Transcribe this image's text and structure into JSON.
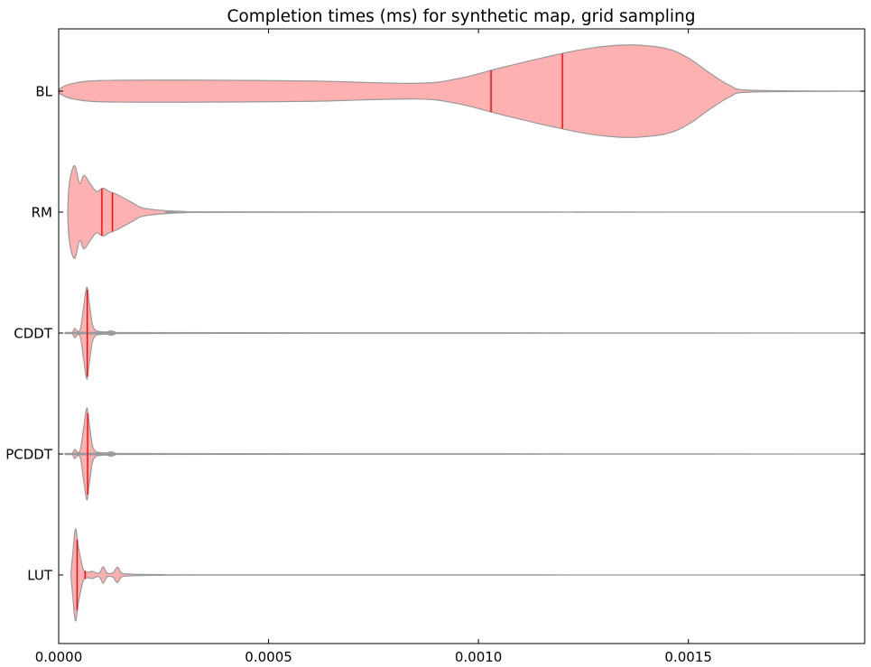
{
  "chart_data": {
    "type": "violin",
    "title": "Completion times (ms) for synthetic map, grid sampling",
    "xlabel": "",
    "ylabel": "",
    "xlim": [
      0,
      0.00192
    ],
    "x_ticks": [
      {
        "value": 0,
        "label": "0.0000"
      },
      {
        "value": 0.0005,
        "label": "0.0005"
      },
      {
        "value": 0.001,
        "label": "0.0010"
      },
      {
        "value": 0.0015,
        "label": "0.0015"
      }
    ],
    "grid": false,
    "legend": "none",
    "colors": {
      "fill": "#ffb0b0",
      "edge": "#999999",
      "marker": "#ff0000"
    },
    "series": [
      {
        "category": "BL",
        "markers": [
          0.00103,
          0.0012
        ],
        "profile": [
          [
            1.5e-06,
            0.05
          ],
          [
            3e-05,
            0.16
          ],
          [
            0.0001,
            0.23
          ],
          [
            0.0003,
            0.24
          ],
          [
            0.0006,
            0.22
          ],
          [
            0.00085,
            0.17
          ],
          [
            0.00095,
            0.27
          ],
          [
            0.00105,
            0.5
          ],
          [
            0.00115,
            0.72
          ],
          [
            0.00125,
            0.91
          ],
          [
            0.00132,
            0.99
          ],
          [
            0.00138,
            1.0
          ],
          [
            0.00145,
            0.92
          ],
          [
            0.0015,
            0.72
          ],
          [
            0.00155,
            0.4
          ],
          [
            0.0016,
            0.12
          ],
          [
            0.00165,
            0.02
          ],
          [
            0.00192,
            0.0
          ]
        ]
      },
      {
        "category": "RM",
        "markers": [
          0.000103,
          0.000128
        ],
        "profile": [
          [
            2.15e-05,
            0.0
          ],
          [
            2.4e-05,
            0.5
          ],
          [
            3e-05,
            0.85
          ],
          [
            3.9e-05,
            1.0
          ],
          [
            5e-05,
            0.62
          ],
          [
            6e-05,
            0.8
          ],
          [
            7.5e-05,
            0.62
          ],
          [
            9e-05,
            0.45
          ],
          [
            0.000105,
            0.52
          ],
          [
            0.00012,
            0.45
          ],
          [
            0.00014,
            0.38
          ],
          [
            0.00016,
            0.28
          ],
          [
            0.00018,
            0.18
          ],
          [
            0.0002,
            0.09
          ],
          [
            0.00025,
            0.035
          ],
          [
            0.0003,
            0.015
          ],
          [
            0.0004,
            0.005
          ],
          [
            0.00192,
            0.0
          ]
        ]
      },
      {
        "category": "CDDT",
        "markers": [
          6.8e-05
        ],
        "profile": [
          [
            3.3e-05,
            0.0
          ],
          [
            3.8e-05,
            0.1
          ],
          [
            4.5e-05,
            0.04
          ],
          [
            5.2e-05,
            0.1
          ],
          [
            6e-05,
            0.6
          ],
          [
            6.7e-05,
            1.0
          ],
          [
            7.3e-05,
            0.65
          ],
          [
            8e-05,
            0.2
          ],
          [
            8.8e-05,
            0.06
          ],
          [
            0.0001,
            0.03
          ],
          [
            0.000115,
            0.025
          ],
          [
            0.000125,
            0.05
          ],
          [
            0.000135,
            0.02
          ],
          [
            0.00015,
            0.01
          ],
          [
            0.00192,
            0.0
          ]
        ]
      },
      {
        "category": "PCDDT",
        "markers": [
          6.9e-05
        ],
        "profile": [
          [
            3.3e-05,
            0.0
          ],
          [
            3.8e-05,
            0.1
          ],
          [
            4.5e-05,
            0.04
          ],
          [
            5.2e-05,
            0.1
          ],
          [
            6e-05,
            0.6
          ],
          [
            6.7e-05,
            1.0
          ],
          [
            7.3e-05,
            0.65
          ],
          [
            8e-05,
            0.2
          ],
          [
            8.8e-05,
            0.06
          ],
          [
            0.0001,
            0.03
          ],
          [
            0.000115,
            0.025
          ],
          [
            0.000125,
            0.05
          ],
          [
            0.000135,
            0.02
          ],
          [
            0.00015,
            0.01
          ],
          [
            0.00192,
            0.0
          ]
        ]
      },
      {
        "category": "LUT",
        "markers": [
          4.4e-05,
          6.3e-05
        ],
        "profile": [
          [
            2.9e-05,
            0.0
          ],
          [
            3.4e-05,
            0.5
          ],
          [
            4e-05,
            1.0
          ],
          [
            4.7e-05,
            0.6
          ],
          [
            5.5e-05,
            0.25
          ],
          [
            6e-05,
            0.1
          ],
          [
            7e-05,
            0.06
          ],
          [
            8e-05,
            0.08
          ],
          [
            9e-05,
            0.04
          ],
          [
            9.8e-05,
            0.05
          ],
          [
            0.000106,
            0.18
          ],
          [
            0.000114,
            0.05
          ],
          [
            0.00012,
            0.03
          ],
          [
            0.00013,
            0.05
          ],
          [
            0.00014,
            0.17
          ],
          [
            0.00015,
            0.04
          ],
          [
            0.00017,
            0.02
          ],
          [
            0.0002,
            0.012
          ],
          [
            0.00025,
            0.008
          ],
          [
            0.00035,
            0.004
          ],
          [
            0.00192,
            0.0
          ]
        ]
      }
    ]
  }
}
